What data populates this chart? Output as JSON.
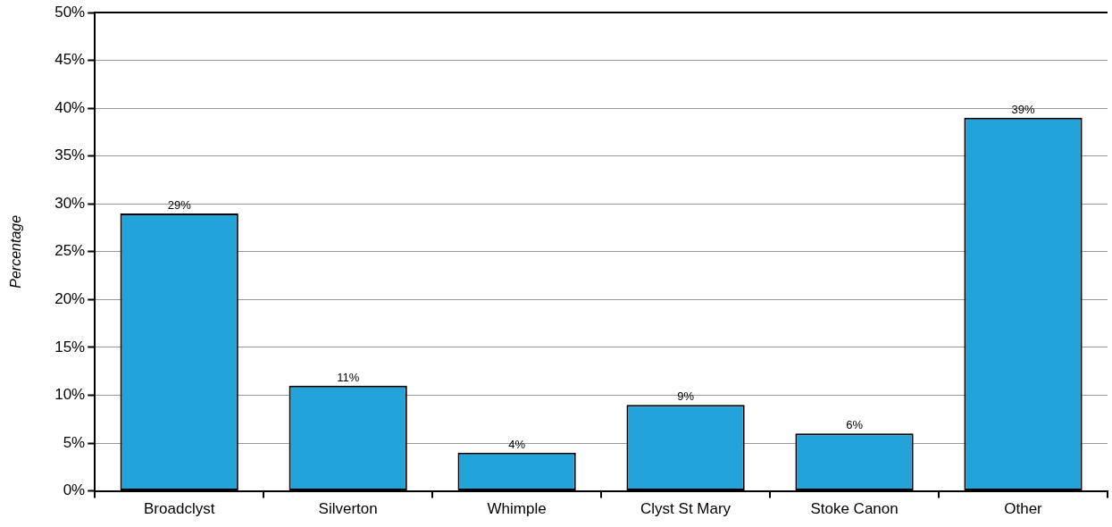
{
  "chart_data": {
    "type": "bar",
    "ylabel": "Percentage",
    "categories": [
      "Broadclyst",
      "Silverton",
      "Whimple",
      "Clyst St Mary",
      "Stoke Canon",
      "Other"
    ],
    "values": [
      29,
      11,
      4,
      9,
      6,
      39
    ],
    "value_labels": [
      "29%",
      "11%",
      "4%",
      "9%",
      "6%",
      "39%"
    ],
    "color": "#22a4da",
    "ylim": [
      0,
      50
    ],
    "yticks": [
      {
        "value": 0,
        "label": "0%"
      },
      {
        "value": 5,
        "label": "5%"
      },
      {
        "value": 10,
        "label": "10%"
      },
      {
        "value": 15,
        "label": "15%"
      },
      {
        "value": 20,
        "label": "20%"
      },
      {
        "value": 25,
        "label": "25%"
      },
      {
        "value": 30,
        "label": "30%"
      },
      {
        "value": 35,
        "label": "35%"
      },
      {
        "value": 40,
        "label": "40%"
      },
      {
        "value": 45,
        "label": "45%"
      },
      {
        "value": 50,
        "label": "50%"
      }
    ],
    "grid": "y",
    "legend": false
  }
}
